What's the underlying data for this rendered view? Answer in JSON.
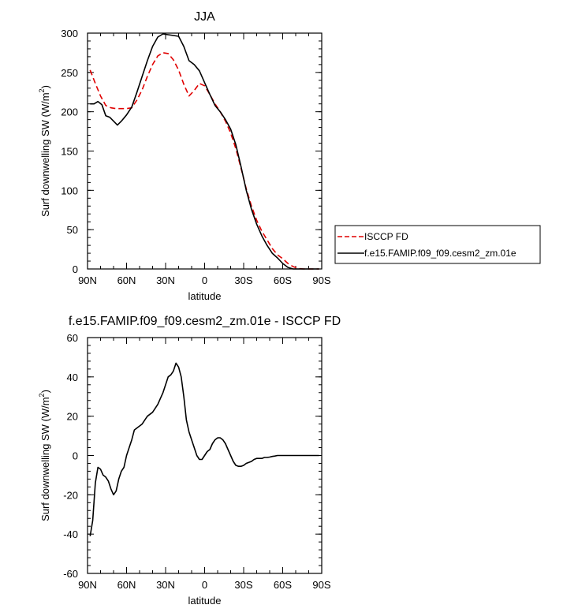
{
  "chart_data": [
    {
      "type": "line",
      "title": "JJA",
      "xlabel": "latitude",
      "ylabel": "Surf downwelling SW (W/m²)",
      "ylabel_main": "Surf downwelling SW (W/m",
      "ylabel_sup": "2",
      "ylabel_close": ")",
      "xlim": [
        90,
        -90
      ],
      "ylim": [
        0,
        300
      ],
      "xticks": [
        90,
        60,
        30,
        0,
        -30,
        -60,
        -90
      ],
      "xtick_labels": [
        "90N",
        "60N",
        "30N",
        "0",
        "30S",
        "60S",
        "90S"
      ],
      "yticks": [
        0,
        50,
        100,
        150,
        200,
        250,
        300
      ],
      "ytick_labels": [
        "0",
        "50",
        "100",
        "150",
        "200",
        "250",
        "300"
      ],
      "legend_position": "right",
      "series": [
        {
          "name": "ISCCP FD",
          "color": "#e00000",
          "dash": "dashed",
          "x": [
            88,
            84,
            80,
            76,
            72,
            68,
            64,
            60,
            56,
            52,
            48,
            44,
            40,
            36,
            32,
            28,
            24,
            20,
            16,
            12,
            8,
            4,
            0,
            -4,
            -8,
            -12,
            -16,
            -20,
            -24,
            -28,
            -32,
            -36,
            -40,
            -44,
            -48,
            -52,
            -56,
            -60,
            -64,
            -68,
            -72,
            -76,
            -80,
            -84,
            -88
          ],
          "values": [
            253,
            236,
            220,
            208,
            205,
            204,
            204,
            204,
            205,
            215,
            228,
            245,
            260,
            271,
            275,
            274,
            266,
            253,
            235,
            220,
            227,
            236,
            233,
            222,
            210,
            200,
            188,
            173,
            153,
            128,
            102,
            80,
            62,
            48,
            37,
            26,
            18,
            13,
            7,
            3,
            0.5,
            0,
            0,
            0,
            0
          ]
        },
        {
          "name": "f.e15.FAMIP.f09_f09.cesm2_zm.01e",
          "color": "#000000",
          "dash": "solid",
          "x": [
            88,
            85,
            82,
            79,
            76,
            73,
            70,
            67,
            64,
            60,
            56,
            52,
            48,
            44,
            40,
            36,
            32,
            28,
            24,
            20,
            16,
            12,
            8,
            4,
            0,
            -4,
            -8,
            -12,
            -16,
            -20,
            -24,
            -28,
            -32,
            -36,
            -40,
            -44,
            -48,
            -52,
            -56,
            -60,
            -64,
            -68,
            -72,
            -76,
            -80,
            -84,
            -88
          ],
          "values": [
            210,
            210,
            213,
            209,
            195,
            193,
            188,
            183,
            188,
            196,
            206,
            225,
            245,
            265,
            283,
            295,
            299,
            298,
            297,
            296,
            283,
            265,
            260,
            252,
            237,
            222,
            208,
            200,
            190,
            178,
            158,
            130,
            100,
            76,
            57,
            42,
            30,
            20,
            14,
            7,
            2,
            0,
            0,
            0,
            0,
            0,
            0
          ]
        }
      ]
    },
    {
      "type": "line",
      "title": "f.e15.FAMIP.f09_f09.cesm2_zm.01e - ISCCP FD",
      "xlabel": "latitude",
      "ylabel": "Surf downwelling SW (W/m²)",
      "ylabel_main": "Surf downwelling SW (W/m",
      "ylabel_sup": "2",
      "ylabel_close": ")",
      "xlim": [
        90,
        -90
      ],
      "ylim": [
        -60,
        60
      ],
      "xticks": [
        90,
        60,
        30,
        0,
        -30,
        -60,
        -90
      ],
      "xtick_labels": [
        "90N",
        "60N",
        "30N",
        "0",
        "30S",
        "60S",
        "90S"
      ],
      "yticks": [
        -60,
        -40,
        -20,
        0,
        20,
        40,
        60
      ],
      "ytick_labels": [
        "-60",
        "-40",
        "-20",
        "0",
        "20",
        "40",
        "60"
      ],
      "series": [
        {
          "color": "#000000",
          "dash": "solid",
          "x": [
            88,
            86,
            84,
            82,
            80,
            78,
            76,
            74,
            72,
            70,
            68,
            66,
            64,
            62,
            60,
            58,
            56,
            54,
            52,
            50,
            48,
            46,
            44,
            42,
            40,
            38,
            36,
            34,
            32,
            30,
            28,
            26,
            24,
            22,
            20,
            18,
            16,
            14,
            12,
            10,
            8,
            6,
            4,
            2,
            0,
            -2,
            -4,
            -6,
            -8,
            -10,
            -12,
            -14,
            -16,
            -18,
            -20,
            -22,
            -24,
            -26,
            -28,
            -30,
            -32,
            -34,
            -36,
            -38,
            -40,
            -42,
            -44,
            -46,
            -48,
            -50,
            -52,
            -54,
            -56,
            -58,
            -60,
            -62,
            -64,
            -66,
            -68,
            -70,
            -72,
            -74,
            -76,
            -78,
            -80,
            -82,
            -84,
            -86,
            -88
          ],
          "values": [
            -41,
            -33,
            -14,
            -6,
            -7,
            -10,
            -11,
            -13,
            -17,
            -20,
            -18,
            -12,
            -8,
            -6,
            0,
            4,
            8,
            13,
            14,
            15,
            16,
            18,
            20,
            21,
            22,
            24,
            26,
            29,
            32,
            36,
            40,
            41,
            43,
            47,
            45,
            40,
            30,
            18,
            12,
            8,
            4,
            0,
            -2,
            -2,
            0,
            2,
            3,
            6,
            8,
            9,
            9,
            8,
            6,
            3,
            0,
            -3,
            -5,
            -5.5,
            -5.5,
            -5,
            -4,
            -3.5,
            -3,
            -2,
            -1.5,
            -1.5,
            -1.5,
            -1,
            -1,
            -0.8,
            -0.5,
            -0.3,
            0,
            0,
            0,
            0,
            0,
            0,
            0,
            0,
            0,
            0,
            0,
            0,
            0,
            0,
            0,
            0,
            0
          ]
        }
      ]
    }
  ]
}
